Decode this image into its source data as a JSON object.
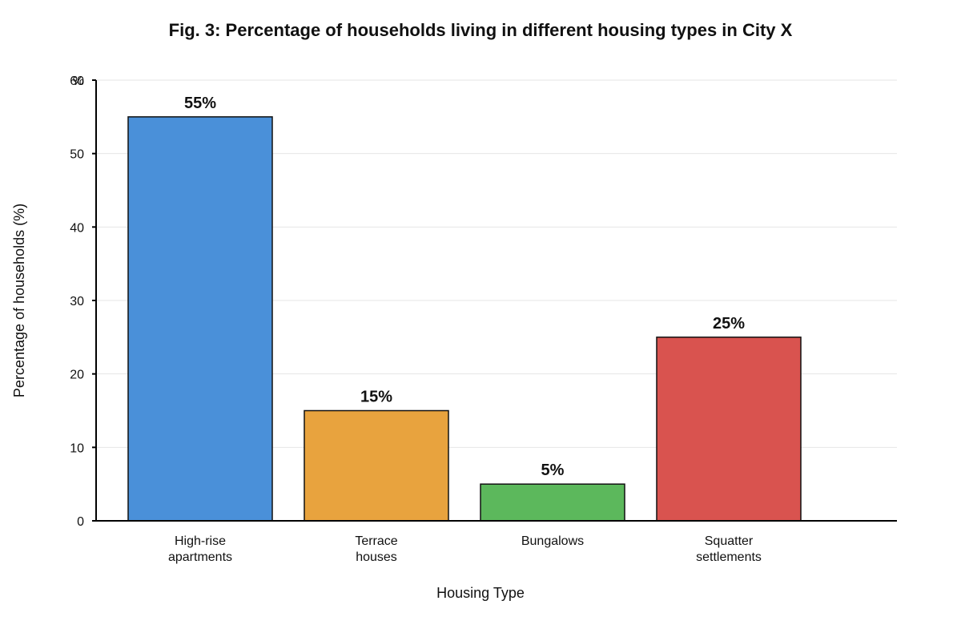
{
  "chart_data": {
    "type": "bar",
    "title": "Fig. 3: Percentage of households living in different housing types in City X",
    "xlabel": "Housing Type",
    "ylabel": "Percentage of households (%)",
    "y_unit_tick": "%",
    "ylim": [
      0,
      60
    ],
    "yticks": [
      0,
      10,
      20,
      30,
      40,
      50,
      60
    ],
    "grid": true,
    "categories": [
      [
        "High-rise",
        "apartments"
      ],
      [
        "Terrace",
        "houses"
      ],
      [
        "Bungalows"
      ],
      [
        "Squatter",
        "settlements"
      ]
    ],
    "values": [
      55,
      15,
      5,
      25
    ],
    "data_labels": [
      "55%",
      "15%",
      "5%",
      "25%"
    ],
    "colors": [
      "#4a90d9",
      "#e8a33e",
      "#5cb85c",
      "#d9534f"
    ]
  }
}
